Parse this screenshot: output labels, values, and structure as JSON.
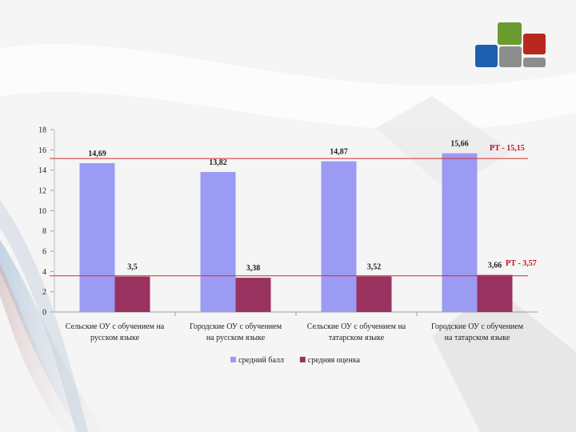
{
  "colors": {
    "series_avg_score": "#9b9bf4",
    "series_avg_grade": "#99325e",
    "reference_line": "#d22c2c",
    "logo_green": "#6b9a2f",
    "logo_red": "#b8281e",
    "logo_blue": "#1e5eae",
    "logo_gray": "#8d8d8d"
  },
  "chart_data": {
    "type": "bar",
    "title": "",
    "xlabel": "",
    "ylabel": "",
    "ylim": [
      0,
      18
    ],
    "yticks": [
      0,
      2,
      4,
      6,
      8,
      10,
      12,
      14,
      16,
      18
    ],
    "grid": false,
    "legend_position": "bottom",
    "categories": [
      [
        "Сельские ОУ с обучением на",
        "русском языке"
      ],
      [
        "Городские ОУ с обучением",
        "на русском языке"
      ],
      [
        "Сельские ОУ с обучением на",
        "татарском языке"
      ],
      [
        "Городские ОУ с обучением",
        "на татарском языке"
      ]
    ],
    "series": [
      {
        "name": "средний балл",
        "values": [
          14.69,
          13.82,
          14.87,
          15.66
        ],
        "labels": [
          "14,69",
          "13,82",
          "14,87",
          "15,66"
        ]
      },
      {
        "name": "средняя оценка",
        "values": [
          3.5,
          3.38,
          3.52,
          3.66
        ],
        "labels": [
          "3,5",
          "3,38",
          "3,52",
          "3,66"
        ]
      }
    ],
    "reference_lines": [
      {
        "value": 15.15,
        "label": "РТ - 15,15"
      },
      {
        "value": 3.57,
        "label": "РТ - 3,57"
      }
    ]
  }
}
